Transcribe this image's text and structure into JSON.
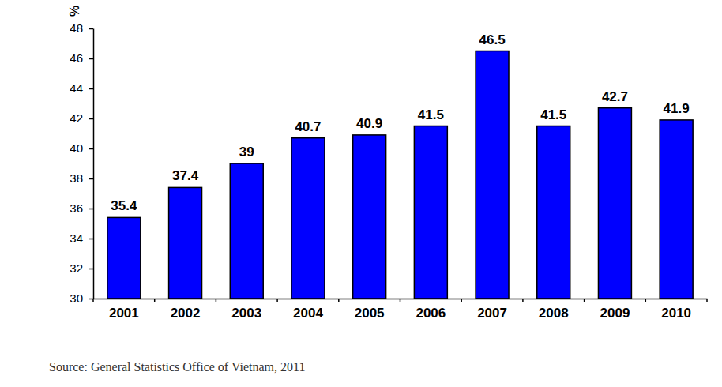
{
  "chart_data": {
    "type": "bar",
    "y_label": "%",
    "source": "Source: General Statistics Office of Vietnam, 2011",
    "categories": [
      "2001",
      "2002",
      "2003",
      "2004",
      "2005",
      "2006",
      "2007",
      "2008",
      "2009",
      "2010"
    ],
    "values": [
      35.4,
      37.4,
      39,
      40.7,
      40.9,
      41.5,
      46.5,
      41.5,
      42.7,
      41.9
    ],
    "color": "#0000ff",
    "ylim": [
      30,
      48
    ],
    "yticks": [
      30,
      32,
      34,
      36,
      38,
      40,
      42,
      44,
      46,
      48
    ],
    "grid": false,
    "data_labels": true
  }
}
